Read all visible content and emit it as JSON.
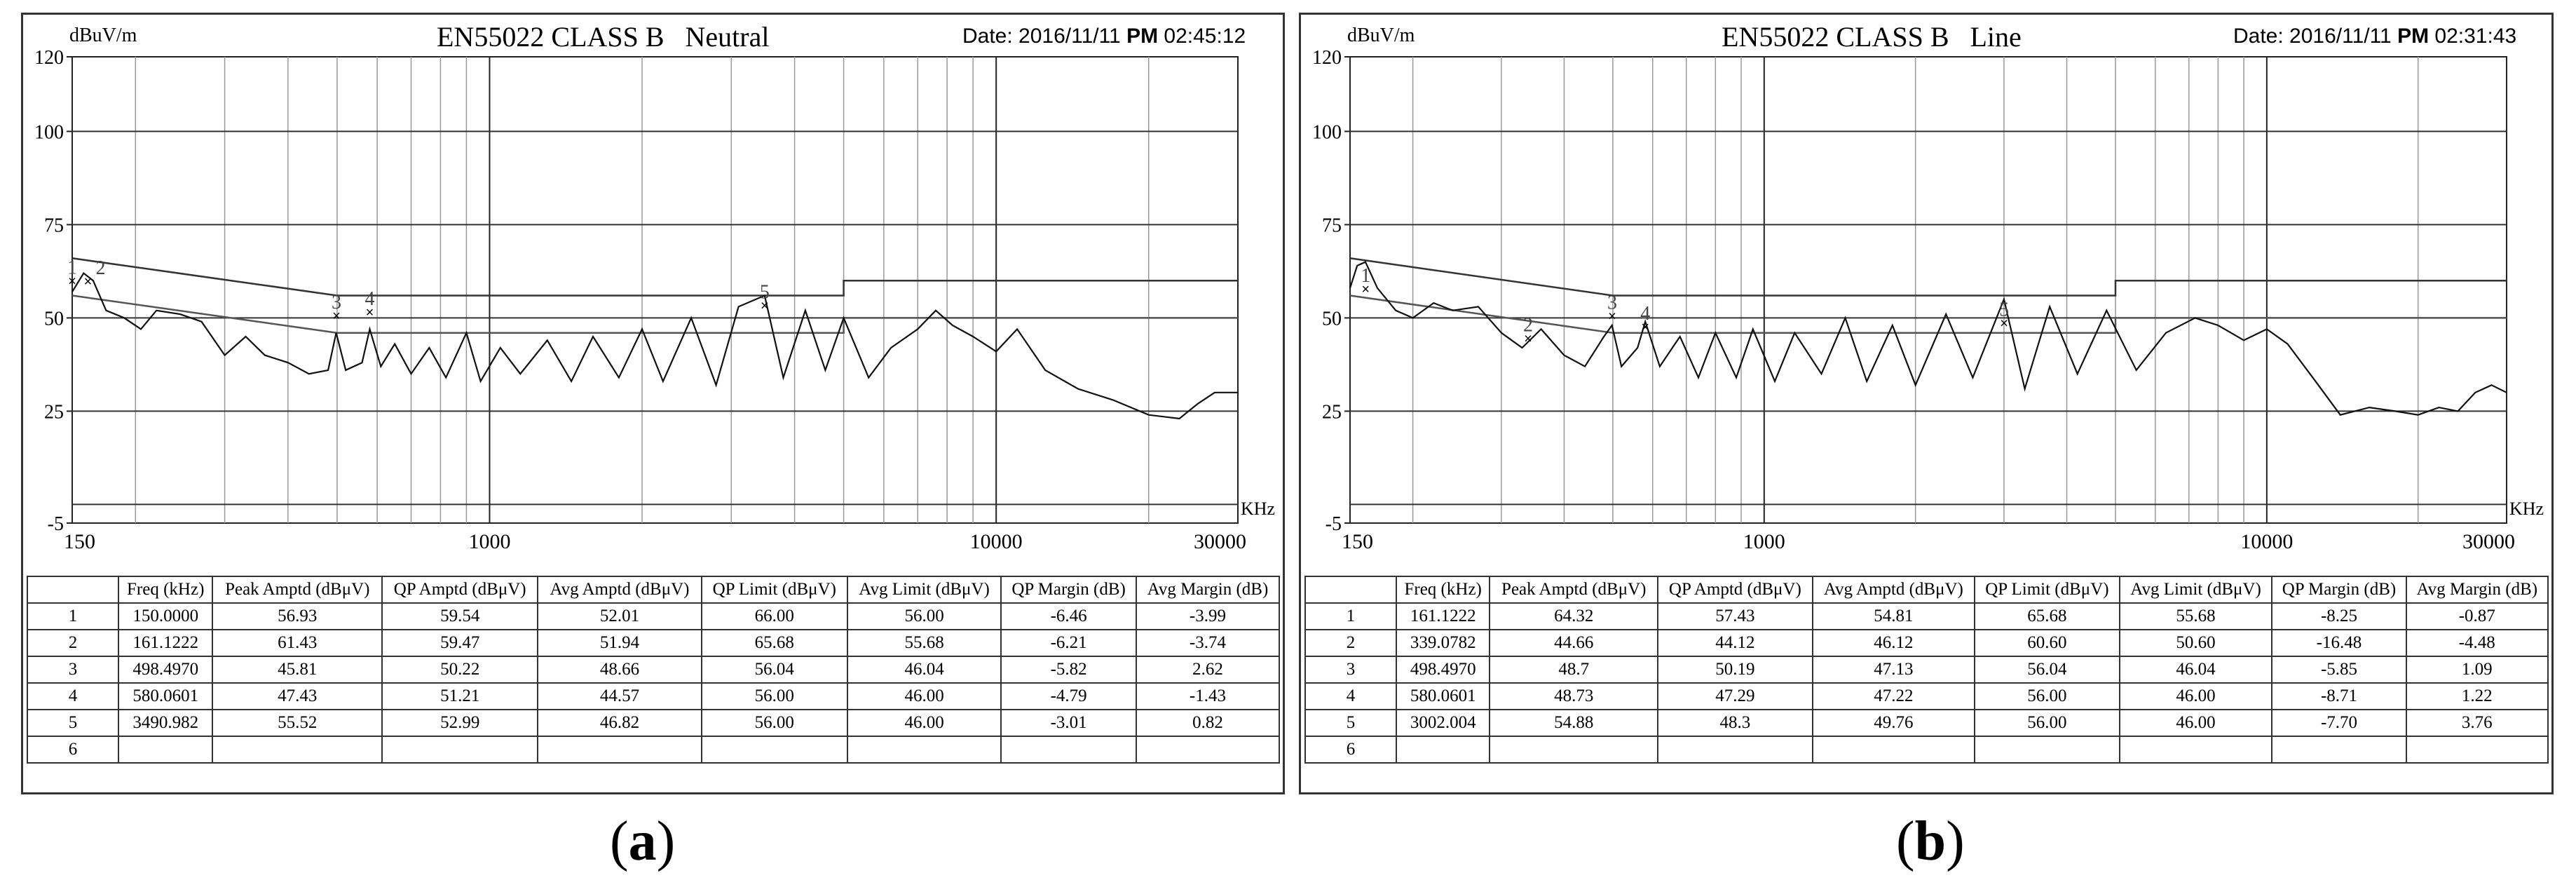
{
  "captions": {
    "a": "a",
    "b": "b"
  },
  "chart_data": [
    {
      "type": "line",
      "title": "EN55022 CLASS B   Neutral",
      "date_label": "Date: 2016/11/11 ",
      "date_pm": "PM",
      "date_time": " 02:45:12",
      "ylabel": "dBuV/m",
      "xlabel": "KHz",
      "x_scale": "log",
      "xlim": [
        150,
        30000
      ],
      "ylim": [
        -5,
        120
      ],
      "x_ticks": [
        "150",
        "1000",
        "10000",
        "30000"
      ],
      "y_ticks": [
        "120",
        "100",
        "75",
        "50",
        "25",
        "-5"
      ],
      "qp_limit": [
        [
          150,
          66
        ],
        [
          500,
          56
        ],
        [
          5000,
          56
        ],
        [
          5000,
          60
        ],
        [
          30000,
          60
        ]
      ],
      "avg_limit": [
        [
          150,
          56
        ],
        [
          500,
          46
        ],
        [
          5000,
          46
        ],
        [
          5000,
          50
        ],
        [
          30000,
          50
        ]
      ],
      "trace": [
        [
          150,
          57
        ],
        [
          158,
          62
        ],
        [
          165,
          60
        ],
        [
          175,
          52
        ],
        [
          190,
          50
        ],
        [
          205,
          47
        ],
        [
          220,
          52
        ],
        [
          245,
          51
        ],
        [
          270,
          49
        ],
        [
          300,
          40
        ],
        [
          330,
          45
        ],
        [
          360,
          40
        ],
        [
          400,
          38
        ],
        [
          440,
          35
        ],
        [
          480,
          36
        ],
        [
          498,
          46
        ],
        [
          520,
          36
        ],
        [
          560,
          38
        ],
        [
          580,
          47
        ],
        [
          610,
          37
        ],
        [
          650,
          43
        ],
        [
          700,
          35
        ],
        [
          760,
          42
        ],
        [
          820,
          34
        ],
        [
          900,
          46
        ],
        [
          960,
          33
        ],
        [
          1050,
          42
        ],
        [
          1150,
          35
        ],
        [
          1300,
          44
        ],
        [
          1450,
          33
        ],
        [
          1600,
          45
        ],
        [
          1800,
          34
        ],
        [
          2000,
          47
        ],
        [
          2200,
          33
        ],
        [
          2500,
          50
        ],
        [
          2800,
          32
        ],
        [
          3100,
          53
        ],
        [
          3490,
          56
        ],
        [
          3800,
          34
        ],
        [
          4200,
          52
        ],
        [
          4600,
          36
        ],
        [
          5000,
          50
        ],
        [
          5600,
          34
        ],
        [
          6200,
          42
        ],
        [
          7000,
          47
        ],
        [
          7600,
          52
        ],
        [
          8200,
          48
        ],
        [
          9000,
          45
        ],
        [
          10000,
          41
        ],
        [
          11000,
          47
        ],
        [
          12500,
          36
        ],
        [
          14500,
          31
        ],
        [
          17000,
          28
        ],
        [
          20000,
          24
        ],
        [
          23000,
          23
        ],
        [
          25000,
          27
        ],
        [
          27000,
          30
        ],
        [
          30000,
          30
        ]
      ],
      "markers": [
        {
          "label": "1",
          "x": 150,
          "y": 59.54
        },
        {
          "label": "2",
          "x": 161.1222,
          "y": 59.47
        },
        {
          "label": "3",
          "x": 498.497,
          "y": 50.22
        },
        {
          "label": "4",
          "x": 580.0601,
          "y": 51.21
        },
        {
          "label": "5",
          "x": 3490.982,
          "y": 52.99
        }
      ],
      "table": {
        "headers": [
          "",
          "Freq (kHz)",
          "Peak Amptd (dBμV)",
          "QP Amptd (dBμV)",
          "Avg Amptd (dBμV)",
          "QP Limit (dBμV)",
          "Avg Limit (dBμV)",
          "QP Margin (dB)",
          "Avg Margin (dB)"
        ],
        "rows": [
          [
            "1",
            "150.0000",
            "56.93",
            "59.54",
            "52.01",
            "66.00",
            "56.00",
            "-6.46",
            "-3.99"
          ],
          [
            "2",
            "161.1222",
            "61.43",
            "59.47",
            "51.94",
            "65.68",
            "55.68",
            "-6.21",
            "-3.74"
          ],
          [
            "3",
            "498.4970",
            "45.81",
            "50.22",
            "48.66",
            "56.04",
            "46.04",
            "-5.82",
            "2.62"
          ],
          [
            "4",
            "580.0601",
            "47.43",
            "51.21",
            "44.57",
            "56.00",
            "46.00",
            "-4.79",
            "-1.43"
          ],
          [
            "5",
            "3490.982",
            "55.52",
            "52.99",
            "46.82",
            "56.00",
            "46.00",
            "-3.01",
            "0.82"
          ],
          [
            "6",
            "",
            "",
            "",
            "",
            "",
            "",
            "",
            ""
          ]
        ]
      }
    },
    {
      "type": "line",
      "title": "EN55022 CLASS B   Line",
      "date_label": "Date: 2016/11/11 ",
      "date_pm": "PM",
      "date_time": " 02:31:43",
      "ylabel": "dBuV/m",
      "xlabel": "KHz",
      "x_scale": "log",
      "xlim": [
        150,
        30000
      ],
      "ylim": [
        -5,
        120
      ],
      "x_ticks": [
        "150",
        "1000",
        "10000",
        "30000"
      ],
      "y_ticks": [
        "120",
        "100",
        "75",
        "50",
        "25",
        "-5"
      ],
      "qp_limit": [
        [
          150,
          66
        ],
        [
          500,
          56
        ],
        [
          5000,
          56
        ],
        [
          5000,
          60
        ],
        [
          30000,
          60
        ]
      ],
      "avg_limit": [
        [
          150,
          56
        ],
        [
          500,
          46
        ],
        [
          5000,
          46
        ],
        [
          5000,
          50
        ],
        [
          30000,
          50
        ]
      ],
      "trace": [
        [
          150,
          58
        ],
        [
          155,
          64
        ],
        [
          161,
          65
        ],
        [
          170,
          58
        ],
        [
          185,
          52
        ],
        [
          200,
          50
        ],
        [
          220,
          54
        ],
        [
          240,
          52
        ],
        [
          270,
          53
        ],
        [
          300,
          46
        ],
        [
          330,
          42
        ],
        [
          360,
          47
        ],
        [
          400,
          40
        ],
        [
          440,
          37
        ],
        [
          480,
          45
        ],
        [
          498,
          48
        ],
        [
          520,
          37
        ],
        [
          560,
          42
        ],
        [
          580,
          49
        ],
        [
          620,
          37
        ],
        [
          680,
          45
        ],
        [
          740,
          34
        ],
        [
          800,
          46
        ],
        [
          880,
          34
        ],
        [
          950,
          47
        ],
        [
          1050,
          33
        ],
        [
          1150,
          46
        ],
        [
          1300,
          35
        ],
        [
          1450,
          50
        ],
        [
          1600,
          33
        ],
        [
          1800,
          48
        ],
        [
          2000,
          32
        ],
        [
          2300,
          51
        ],
        [
          2600,
          34
        ],
        [
          3000,
          55
        ],
        [
          3300,
          31
        ],
        [
          3700,
          53
        ],
        [
          4200,
          35
        ],
        [
          4800,
          52
        ],
        [
          5500,
          36
        ],
        [
          6300,
          46
        ],
        [
          7200,
          50
        ],
        [
          8000,
          48
        ],
        [
          9000,
          44
        ],
        [
          10000,
          47
        ],
        [
          11000,
          43
        ],
        [
          12500,
          33
        ],
        [
          14000,
          24
        ],
        [
          16000,
          26
        ],
        [
          18000,
          25
        ],
        [
          20000,
          24
        ],
        [
          22000,
          26
        ],
        [
          24000,
          25
        ],
        [
          26000,
          30
        ],
        [
          28000,
          32
        ],
        [
          30000,
          30
        ]
      ],
      "markers": [
        {
          "label": "1",
          "x": 161.1222,
          "y": 57.43
        },
        {
          "label": "2",
          "x": 339.0782,
          "y": 44.12
        },
        {
          "label": "3",
          "x": 498.497,
          "y": 50.19
        },
        {
          "label": "4",
          "x": 580.0601,
          "y": 47.29
        },
        {
          "label": "5",
          "x": 3002.004,
          "y": 48.3
        }
      ],
      "table": {
        "headers": [
          "",
          "Freq (kHz)",
          "Peak Amptd (dBμV)",
          "QP Amptd (dBμV)",
          "Avg Amptd (dBμV)",
          "QP Limit (dBμV)",
          "Avg Limit (dBμV)",
          "QP Margin (dB)",
          "Avg Margin (dB)"
        ],
        "rows": [
          [
            "1",
            "161.1222",
            "64.32",
            "57.43",
            "54.81",
            "65.68",
            "55.68",
            "-8.25",
            "-0.87"
          ],
          [
            "2",
            "339.0782",
            "44.66",
            "44.12",
            "46.12",
            "60.60",
            "50.60",
            "-16.48",
            "-4.48"
          ],
          [
            "3",
            "498.4970",
            "48.7",
            "50.19",
            "47.13",
            "56.04",
            "46.04",
            "-5.85",
            "1.09"
          ],
          [
            "4",
            "580.0601",
            "48.73",
            "47.29",
            "47.22",
            "56.00",
            "46.00",
            "-8.71",
            "1.22"
          ],
          [
            "5",
            "3002.004",
            "54.88",
            "48.3",
            "49.76",
            "56.00",
            "46.00",
            "-7.70",
            "3.76"
          ],
          [
            "6",
            "",
            "",
            "",
            "",
            "",
            "",
            "",
            ""
          ]
        ]
      }
    }
  ]
}
